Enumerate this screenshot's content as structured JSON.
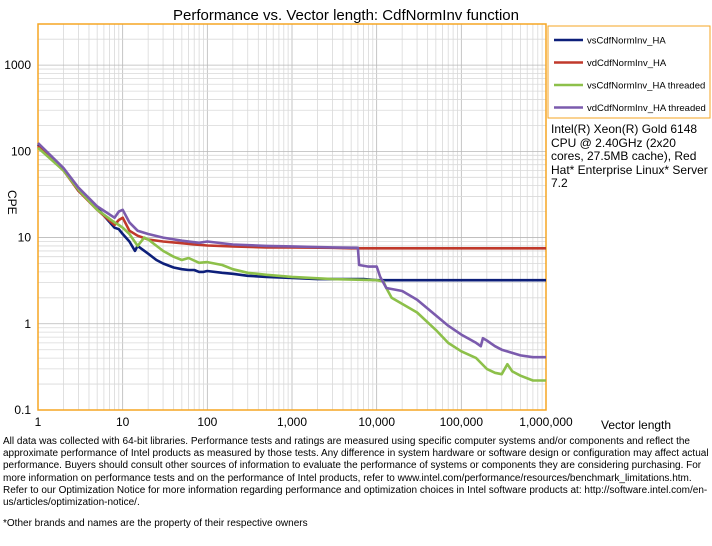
{
  "chart_data": {
    "type": "line",
    "title": "Performance vs. Vector length: CdfNormInv function",
    "xlabel": "Vector length",
    "ylabel": "CPE",
    "x_scale": "log",
    "y_scale": "log",
    "xlim": [
      1,
      1000000
    ],
    "ylim": [
      0.1,
      3000
    ],
    "x_ticks": [
      1,
      10,
      100,
      1000,
      10000,
      100000,
      1000000
    ],
    "x_tick_labels": [
      "1",
      "10",
      "100",
      "1,000",
      "10,000",
      "100,000",
      "1,000,000"
    ],
    "y_ticks": [
      0.1,
      1,
      10,
      100,
      1000
    ],
    "y_tick_labels": [
      "0.1",
      "1",
      "10",
      "100",
      "1000"
    ],
    "grid": true,
    "legend_position": "top-right",
    "series": [
      {
        "name": "vsCdfNormInv_HA",
        "color": "#0D1F7A",
        "points": [
          [
            1,
            120
          ],
          [
            2,
            62
          ],
          [
            3,
            35
          ],
          [
            5,
            22
          ],
          [
            8,
            13
          ],
          [
            9,
            12.5
          ],
          [
            10,
            11
          ],
          [
            12,
            9
          ],
          [
            14,
            7
          ],
          [
            15,
            8
          ],
          [
            20,
            6.5
          ],
          [
            25,
            5.5
          ],
          [
            30,
            5
          ],
          [
            40,
            4.5
          ],
          [
            50,
            4.3
          ],
          [
            60,
            4.2
          ],
          [
            70,
            4.2
          ],
          [
            80,
            4
          ],
          [
            90,
            4
          ],
          [
            100,
            4.1
          ],
          [
            150,
            3.9
          ],
          [
            200,
            3.8
          ],
          [
            300,
            3.6
          ],
          [
            500,
            3.5
          ],
          [
            1000,
            3.4
          ],
          [
            2000,
            3.3
          ],
          [
            5000,
            3.3
          ],
          [
            7000,
            3.3
          ],
          [
            10000,
            3.2
          ],
          [
            12000,
            3.2
          ],
          [
            30000,
            3.2
          ],
          [
            100000,
            3.2
          ],
          [
            300000,
            3.2
          ],
          [
            1000000,
            3.2
          ]
        ]
      },
      {
        "name": "vdCdfNormInv_HA",
        "color": "#C0392B",
        "points": [
          [
            1,
            115
          ],
          [
            2,
            60
          ],
          [
            3,
            35
          ],
          [
            5,
            21
          ],
          [
            8,
            14
          ],
          [
            9,
            16
          ],
          [
            10,
            17
          ],
          [
            12,
            12
          ],
          [
            15,
            10.5
          ],
          [
            20,
            9.5
          ],
          [
            30,
            9
          ],
          [
            50,
            8.6
          ],
          [
            70,
            8.3
          ],
          [
            100,
            8.1
          ],
          [
            200,
            7.9
          ],
          [
            500,
            7.7
          ],
          [
            1000,
            7.7
          ],
          [
            3000,
            7.6
          ],
          [
            5000,
            7.5
          ],
          [
            10000,
            7.5
          ],
          [
            100000,
            7.5
          ],
          [
            1000000,
            7.5
          ]
        ]
      },
      {
        "name": "vsCdfNormInv_HA threaded",
        "color": "#8DC04A",
        "points": [
          [
            1,
            110
          ],
          [
            2,
            60
          ],
          [
            3,
            36
          ],
          [
            5,
            21
          ],
          [
            8,
            15
          ],
          [
            9,
            14
          ],
          [
            10,
            13
          ],
          [
            12,
            11
          ],
          [
            15,
            8
          ],
          [
            18,
            10
          ],
          [
            20,
            9.5
          ],
          [
            30,
            7
          ],
          [
            40,
            6
          ],
          [
            50,
            5.5
          ],
          [
            60,
            5.8
          ],
          [
            80,
            5.1
          ],
          [
            100,
            5.2
          ],
          [
            150,
            4.8
          ],
          [
            200,
            4.3
          ],
          [
            300,
            3.9
          ],
          [
            500,
            3.7
          ],
          [
            1000,
            3.5
          ],
          [
            3000,
            3.3
          ],
          [
            10000,
            3.2
          ],
          [
            12000,
            3.1
          ],
          [
            13000,
            2.6
          ],
          [
            15000,
            2
          ],
          [
            20000,
            1.7
          ],
          [
            30000,
            1.35
          ],
          [
            50000,
            0.85
          ],
          [
            70000,
            0.6
          ],
          [
            100000,
            0.48
          ],
          [
            150000,
            0.4
          ],
          [
            200000,
            0.3
          ],
          [
            250000,
            0.27
          ],
          [
            300000,
            0.26
          ],
          [
            350000,
            0.34
          ],
          [
            400000,
            0.28
          ],
          [
            500000,
            0.25
          ],
          [
            700000,
            0.22
          ],
          [
            1000000,
            0.22
          ]
        ]
      },
      {
        "name": "vdCdfNormInv_HA threaded",
        "color": "#7B5BAD",
        "points": [
          [
            1,
            125
          ],
          [
            2,
            64
          ],
          [
            3,
            38
          ],
          [
            5,
            23
          ],
          [
            8,
            17
          ],
          [
            9,
            20
          ],
          [
            10,
            21
          ],
          [
            12,
            15
          ],
          [
            15,
            12
          ],
          [
            20,
            11
          ],
          [
            30,
            10
          ],
          [
            50,
            9.2
          ],
          [
            80,
            8.7
          ],
          [
            100,
            9
          ],
          [
            200,
            8.3
          ],
          [
            500,
            8
          ],
          [
            1000,
            7.9
          ],
          [
            3000,
            7.7
          ],
          [
            6000,
            7.6
          ],
          [
            6200,
            4.8
          ],
          [
            8000,
            4.6
          ],
          [
            10000,
            4.6
          ],
          [
            11000,
            3.5
          ],
          [
            13000,
            2.6
          ],
          [
            20000,
            2.4
          ],
          [
            30000,
            1.9
          ],
          [
            50000,
            1.25
          ],
          [
            70000,
            0.95
          ],
          [
            100000,
            0.75
          ],
          [
            150000,
            0.6
          ],
          [
            170000,
            0.55
          ],
          [
            180000,
            0.68
          ],
          [
            200000,
            0.64
          ],
          [
            250000,
            0.55
          ],
          [
            300000,
            0.5
          ],
          [
            500000,
            0.43
          ],
          [
            700000,
            0.41
          ],
          [
            1000000,
            0.41
          ]
        ]
      }
    ]
  },
  "cpu_note": "Intel(R) Xeon(R) Gold 6148 CPU @ 2.40GHz (2x20 cores, 27.5MB cache), Red Hat* Enterprise Linux* Server 7.2",
  "disclaimer": "All data was collected with 64-bit libraries. Performance tests and ratings are measured using specific computer systems and/or components and reflect the approximate performance of Intel products as measured by those tests. Any difference in system hardware or software design or configuration may affect actual performance. Buyers should consult other sources of information to evaluate the performance of systems or components they are considering purchasing. For more information on performance tests and on the performance of Intel products, refer to www.intel.com/performance/resources/benchmark_limitations.htm. Refer to our Optimization Notice for more information regarding performance and optimization choices in Intel software products at: http://software.intel.com/en-us/articles/optimization-notice/.",
  "footnote": "*Other brands and names are the property of their respective owners"
}
